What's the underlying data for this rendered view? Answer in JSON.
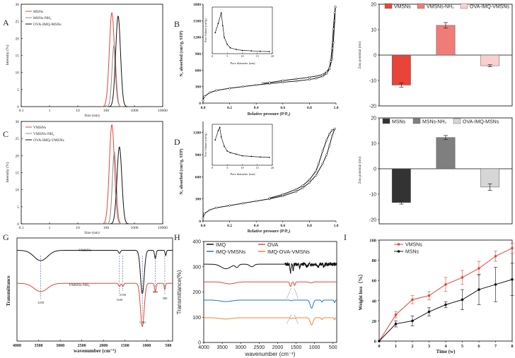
{
  "panels": {
    "A": {
      "letter": "A",
      "xlabel": "Size (nm)",
      "ylabel": "Intensity (%)",
      "xticks": [
        "0.1",
        "1",
        "10",
        "100",
        "1000",
        "10000"
      ],
      "yticks": [
        "0",
        "5",
        "10",
        "15",
        "20",
        "25",
        "30"
      ],
      "legend": [
        "MSNs",
        "MSNs-NH₂",
        "OVA-IMQ-MSNs"
      ]
    },
    "B": {
      "letter": "B",
      "xlabel": "Relative pressure (P/P₀)",
      "ylabel": "N₂ absorbed (cm³/g, STP)",
      "xticks": [
        "0.0",
        "0.2",
        "0.4",
        "0.6",
        "0.8",
        "1.0"
      ],
      "yticks": [
        "0",
        "300",
        "600",
        "900",
        "1200",
        "1500",
        "1800"
      ],
      "inset_xlabel": "Pore diameter (nm)",
      "inset_ylabel": "Pore Volume (cm³/g)",
      "inset_xticks": [
        "0",
        "5",
        "10",
        "15",
        "20"
      ]
    },
    "C": {
      "letter": "C",
      "xlabel": "Size (nm)",
      "ylabel": "Intensity (%)",
      "xticks": [
        "0.1",
        "1",
        "10",
        "100",
        "1000",
        "10000"
      ],
      "yticks": [
        "0",
        "5",
        "10",
        "15",
        "20",
        "25",
        "30"
      ],
      "legend": [
        "VMSNs",
        "VMSNs-NH₂",
        "OVA-IMQ-VMSNs"
      ]
    },
    "D": {
      "letter": "D",
      "xlabel": "Relative pressure (P/P₀)",
      "ylabel": "N₂ absorbed (cm³/g, STP)",
      "xticks": [
        "0.0",
        "0.2",
        "0.4",
        "0.6",
        "0.8",
        "1.0"
      ],
      "yticks": [
        "0",
        "300",
        "600",
        "900",
        "1200"
      ],
      "inset_xlabel": "Pore diameter (nm)",
      "inset_ylabel": "Pore Volume (cm³/g)",
      "inset_xticks": [
        "0",
        "5",
        "10",
        "15",
        "20"
      ]
    },
    "E": {
      "ylabel": "Zeta potential (mv)",
      "yticks": [
        "20",
        "10",
        "0",
        "-10",
        "-20"
      ],
      "legend": [
        "VMSNs",
        "VMSNs-NH₂",
        "OVA-IMQ-VMSNs"
      ]
    },
    "F": {
      "ylabel": "Zeta potential (mv)",
      "yticks": [
        "20",
        "10",
        "0",
        "-10",
        "-20"
      ],
      "legend": [
        "MSNs",
        "MSNs-NH₂",
        "OVA-IMQ-MSNs"
      ]
    },
    "G": {
      "letter": "G",
      "xlabel": "wavenumber (cm⁻¹)",
      "ylabel": "Transmittance",
      "xticks": [
        "4000",
        "3500",
        "3000",
        "2500",
        "2000",
        "1500",
        "1000",
        "500"
      ],
      "series_labels": [
        "VMSNs",
        "VMSNs-NH₂"
      ],
      "peaks": [
        "3450",
        "1630",
        "1550",
        "1100",
        "800",
        "580"
      ]
    },
    "H": {
      "letter": "H",
      "xlabel": "wavenumber (cm⁻¹)",
      "ylabel": "Transmittance(%)",
      "xticks": [
        "4000",
        "3500",
        "3000",
        "2500",
        "2000",
        "1500",
        "1000",
        "500"
      ],
      "yticks": [
        "0",
        "100",
        "200",
        "300",
        "400"
      ],
      "legend": [
        "IMQ",
        "OVA",
        "IMQ-VMSNs",
        "IMQ-OVA-VMSNs"
      ]
    },
    "I": {
      "letter": "I",
      "xlabel": "Time (w)",
      "ylabel": "Weight loss（%）",
      "xticks": [
        "0",
        "1",
        "2",
        "3",
        "4",
        "5",
        "6",
        "7",
        "8"
      ],
      "yticks": [
        "0",
        "20",
        "40",
        "60",
        "80",
        "100"
      ],
      "legend": [
        "VMSNs",
        "MSNs"
      ]
    }
  },
  "colors": {
    "red": "#e8443a",
    "black": "#111111",
    "gray": "#8c8c8c",
    "blue": "#1f77b4",
    "orange": "#f0882a",
    "salmon": "#f07c78",
    "pink": "#f9cfcf",
    "dark": "#333333",
    "mid": "#7f7f7f",
    "light": "#d6d6d6"
  },
  "chart_data": [
    {
      "panel": "A",
      "type": "line",
      "xscale": "log",
      "xlim": [
        0.1,
        10000
      ],
      "ylim": [
        0,
        30
      ],
      "series": [
        {
          "name": "MSNs",
          "mu": 160,
          "sigma": 0.09,
          "peak": 27.5,
          "color": "red"
        },
        {
          "name": "MSNs-NH₂",
          "mu": 190,
          "sigma": 0.07,
          "peak": 18,
          "color": "gray"
        },
        {
          "name": "OVA-IMQ-MSNs",
          "mu": 265,
          "sigma": 0.085,
          "peak": 26.5,
          "color": "black"
        }
      ]
    },
    {
      "panel": "B",
      "type": "line",
      "xlim": [
        0,
        1.0
      ],
      "ylim": [
        0,
        1800
      ],
      "adsorption": {
        "x": [
          0.0,
          0.01,
          0.05,
          0.1,
          0.2,
          0.3,
          0.4,
          0.5,
          0.6,
          0.7,
          0.8,
          0.85,
          0.9,
          0.93,
          0.95,
          0.97,
          0.98,
          0.99,
          0.995
        ],
        "y": [
          50,
          120,
          190,
          230,
          270,
          300,
          330,
          355,
          380,
          400,
          430,
          450,
          490,
          540,
          620,
          800,
          1100,
          1500,
          1750
        ]
      },
      "desorption": {
        "x": [
          0.995,
          0.99,
          0.98,
          0.97,
          0.96,
          0.95,
          0.93,
          0.9,
          0.85,
          0.8,
          0.7,
          0.6,
          0.5,
          0.45
        ],
        "y": [
          1750,
          1650,
          1350,
          1000,
          760,
          640,
          570,
          520,
          490,
          470,
          440,
          410,
          375,
          360
        ]
      },
      "inset": {
        "x": [
          1,
          2,
          3,
          3.5,
          4,
          5,
          6,
          8,
          10,
          13,
          16,
          19
        ],
        "y": [
          0.9,
          1.3,
          1.75,
          1.2,
          0.7,
          0.4,
          0.25,
          0.18,
          0.14,
          0.12,
          0.1,
          0.09
        ],
        "xlim": [
          0,
          20
        ],
        "ylim": [
          0,
          2
        ]
      }
    },
    {
      "panel": "C",
      "type": "line",
      "xscale": "log",
      "xlim": [
        0.1,
        10000
      ],
      "ylim": [
        0,
        30
      ],
      "series": [
        {
          "name": "VMSNs",
          "mu": 160,
          "sigma": 0.09,
          "peak": 29,
          "color": "red"
        },
        {
          "name": "VMSNs-NH₂",
          "mu": 195,
          "sigma": 0.07,
          "peak": 21,
          "color": "gray"
        },
        {
          "name": "OVA-IMQ-VMSNs",
          "mu": 295,
          "sigma": 0.085,
          "peak": 22.5,
          "color": "black"
        }
      ]
    },
    {
      "panel": "D",
      "type": "line",
      "xlim": [
        0,
        1.0
      ],
      "ylim": [
        0,
        1350
      ],
      "adsorption": {
        "x": [
          0.0,
          0.01,
          0.05,
          0.1,
          0.2,
          0.3,
          0.4,
          0.5,
          0.6,
          0.7,
          0.75,
          0.8,
          0.85,
          0.9,
          0.93,
          0.95,
          0.97,
          0.99
        ],
        "y": [
          40,
          100,
          150,
          180,
          210,
          240,
          270,
          300,
          340,
          400,
          450,
          520,
          620,
          780,
          900,
          1020,
          1150,
          1250
        ]
      },
      "desorption": {
        "x": [
          0.99,
          0.97,
          0.95,
          0.93,
          0.9,
          0.87,
          0.85,
          0.8,
          0.75,
          0.7,
          0.6,
          0.5
        ],
        "y": [
          1250,
          1230,
          1180,
          1100,
          950,
          780,
          680,
          560,
          480,
          430,
          360,
          310
        ]
      },
      "inset": {
        "x": [
          1,
          2,
          2.5,
          3,
          4,
          5,
          6,
          8,
          10,
          13,
          16,
          19
        ],
        "y": [
          0.8,
          1.1,
          1.2,
          0.9,
          0.6,
          0.45,
          0.4,
          0.35,
          0.3,
          0.28,
          0.26,
          0.25
        ],
        "xlim": [
          0,
          20
        ],
        "ylim": [
          0,
          1.3
        ]
      }
    },
    {
      "panel": "E",
      "type": "bar",
      "ylim": [
        -20,
        20
      ],
      "categories": [
        "VMSNs",
        "VMSNs-NH₂",
        "OVA-IMQ-VMSNs"
      ],
      "values": [
        -11.8,
        11.7,
        -4.2
      ],
      "errors": [
        0.8,
        1.1,
        0.4
      ],
      "colors": [
        "red",
        "salmon",
        "pink"
      ]
    },
    {
      "panel": "F",
      "type": "bar",
      "ylim": [
        -20,
        20
      ],
      "categories": [
        "MSNs",
        "MSNs-NH₂",
        "OVA-IMQ-MSNs"
      ],
      "values": [
        -13.3,
        12.3,
        -7.2
      ],
      "errors": [
        0.6,
        0.8,
        1.3
      ],
      "colors": [
        "dark",
        "mid",
        "light"
      ]
    },
    {
      "panel": "G",
      "type": "line",
      "xlim": [
        4000,
        400
      ],
      "ylim": [
        0,
        100
      ],
      "series": [
        {
          "name": "VMSNs",
          "color": "black",
          "base": 88,
          "bands": [
            [
              3450,
              10,
              220
            ],
            [
              1630,
              3,
              30
            ],
            [
              1100,
              42,
              60
            ],
            [
              800,
              8,
              25
            ],
            [
              560,
              5,
              20
            ]
          ]
        },
        {
          "name": "VMSNs-NH₂",
          "color": "red",
          "base": 56,
          "bands": [
            [
              3450,
              8,
              220
            ],
            [
              1630,
              3,
              30
            ],
            [
              1550,
              3,
              25
            ],
            [
              1100,
              42,
              60
            ],
            [
              800,
              8,
              25
            ],
            [
              580,
              6,
              20
            ]
          ]
        }
      ]
    },
    {
      "panel": "H",
      "type": "line",
      "xlim": [
        4000,
        400
      ],
      "ylim": [
        0,
        400
      ],
      "series": [
        {
          "name": "IMQ",
          "color": "black",
          "base": 310
        },
        {
          "name": "OVA",
          "color": "red",
          "base": 240
        },
        {
          "name": "IMQ-VMSNs",
          "color": "blue",
          "base": 168
        },
        {
          "name": "IMQ-OVA-VMSNs",
          "color": "orange",
          "base": 98
        }
      ]
    },
    {
      "panel": "I",
      "type": "line",
      "xlim": [
        0,
        8
      ],
      "ylim": [
        0,
        100
      ],
      "x": [
        0,
        1,
        2,
        3,
        4,
        5,
        6,
        7,
        8
      ],
      "series": [
        {
          "name": "VMSNs",
          "color": "red",
          "values": [
            0,
            26,
            41,
            45,
            56,
            63,
            72,
            84,
            92
          ],
          "errors": [
            0,
            3,
            4,
            4,
            7,
            7,
            7,
            5,
            5
          ]
        },
        {
          "name": "MSNs",
          "color": "black",
          "values": [
            0,
            17,
            20,
            29,
            36,
            41,
            51,
            56,
            61
          ],
          "errors": [
            0,
            3,
            5,
            4,
            3,
            10,
            15,
            17,
            16
          ]
        }
      ]
    }
  ]
}
